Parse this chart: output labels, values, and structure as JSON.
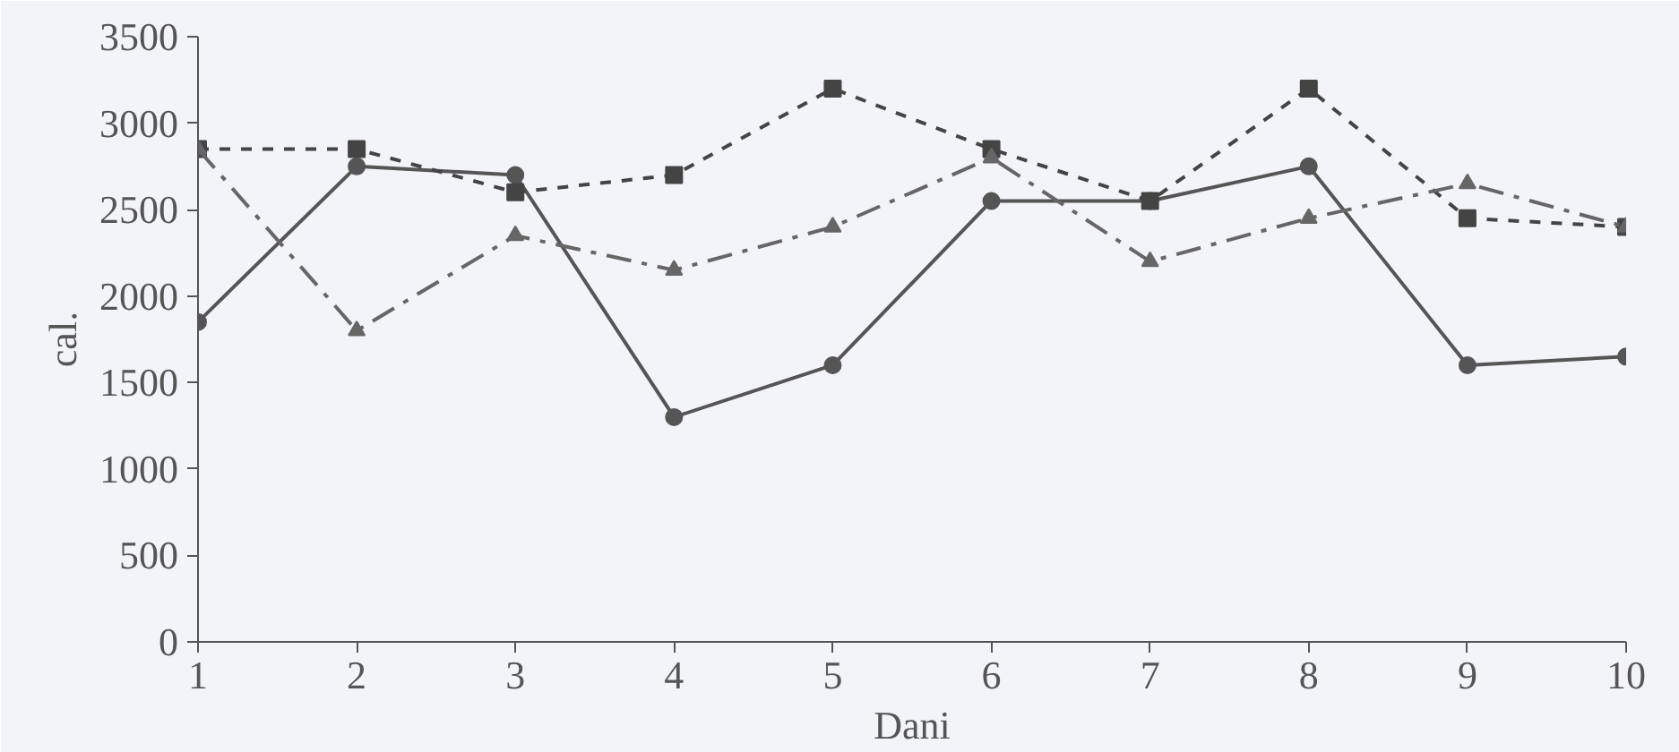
{
  "chart_data": {
    "type": "line",
    "xlabel": "Dani",
    "ylabel": "cal.",
    "x": [
      1,
      2,
      3,
      4,
      5,
      6,
      7,
      8,
      9,
      10
    ],
    "xlim": [
      1,
      10
    ],
    "xticks": [
      1,
      2,
      3,
      4,
      5,
      6,
      7,
      8,
      9,
      10
    ],
    "ylim": [
      0,
      3500
    ],
    "yticks": [
      0,
      500,
      1000,
      1500,
      2000,
      2500,
      3000,
      3500
    ],
    "grid": false,
    "series": [
      {
        "color": "#555555",
        "marker": "circle",
        "line_style": "solid",
        "values": [
          1850,
          2750,
          2700,
          1300,
          1600,
          2550,
          2550,
          2750,
          1600,
          1650
        ]
      },
      {
        "color": "#444444",
        "marker": "square",
        "line_style": "dashed",
        "values": [
          2850,
          2850,
          2600,
          2700,
          3200,
          2850,
          2550,
          3200,
          2450,
          2400
        ]
      },
      {
        "color": "#666666",
        "marker": "triangle",
        "line_style": "dashdot",
        "values": [
          2850,
          1800,
          2350,
          2150,
          2400,
          2800,
          2200,
          2450,
          2650,
          2400
        ]
      }
    ]
  }
}
